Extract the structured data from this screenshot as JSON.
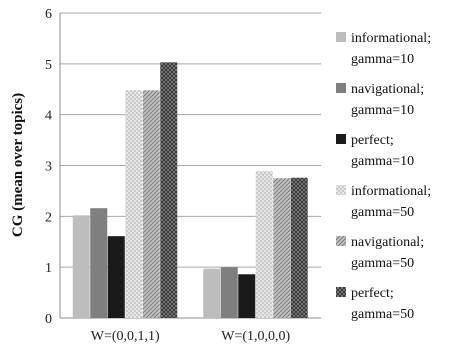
{
  "chart_data": {
    "type": "bar",
    "categories": [
      "W=(0,0,1,1)",
      "W=(1,0,0,0)"
    ],
    "series": [
      {
        "name": "informational; gamma=10",
        "values": [
          2.02,
          0.97
        ],
        "color": "#bdbdbd",
        "pattern": "solid"
      },
      {
        "name": "navigational; gamma=10",
        "values": [
          2.16,
          1.0
        ],
        "color": "#7f7f7f",
        "pattern": "solid"
      },
      {
        "name": "perfect; gamma=10",
        "values": [
          1.61,
          0.86
        ],
        "color": "#1a1a1a",
        "pattern": "solid"
      },
      {
        "name": "informational; gamma=50",
        "values": [
          4.48,
          2.89
        ],
        "color": "#d6d6d6",
        "pattern": "dots"
      },
      {
        "name": "navigational; gamma=50",
        "values": [
          4.48,
          2.75
        ],
        "color": "#a8a8a8",
        "pattern": "diagonal"
      },
      {
        "name": "perfect; gamma=50",
        "values": [
          5.03,
          2.76
        ],
        "color": "#5a5a5a",
        "pattern": "crosshatch"
      }
    ],
    "legend_lines": [
      [
        "informational;",
        "gamma=10"
      ],
      [
        "navigational;",
        "gamma=10"
      ],
      [
        "perfect;",
        "gamma=10"
      ],
      [
        "informational;",
        "gamma=50"
      ],
      [
        "navigational;",
        "gamma=50"
      ],
      [
        "perfect;",
        "gamma=50"
      ]
    ],
    "ylabel": "CG (mean over topics)",
    "xlabel": "",
    "title": "",
    "ylim": [
      0,
      6
    ],
    "yticks": [
      0,
      1,
      2,
      3,
      4,
      5,
      6
    ],
    "grid": true,
    "legend_position": "right"
  }
}
